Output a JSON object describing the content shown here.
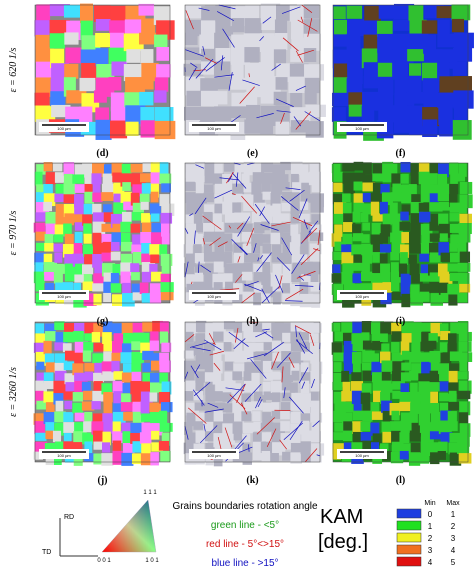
{
  "rows": [
    {
      "label": "ε = 620 1/s",
      "panels": [
        {
          "label": "(d)",
          "scale": "100 µm"
        },
        {
          "label": "(e)",
          "scale": "100 µm"
        },
        {
          "label": "(f)",
          "scale": "100 µm"
        }
      ]
    },
    {
      "label": "ε = 970 1/s",
      "panels": [
        {
          "label": "(g)",
          "scale": "100 µm"
        },
        {
          "label": "(h)",
          "scale": "100 µm"
        },
        {
          "label": "(i)",
          "scale": "100 µm"
        }
      ]
    },
    {
      "label": "ε = 3260 1/s",
      "panels": [
        {
          "label": "(j)",
          "scale": "100 µm"
        },
        {
          "label": "(k)",
          "scale": "100 µm"
        },
        {
          "label": "(l)",
          "scale": "100 µm"
        }
      ]
    }
  ],
  "legend": {
    "axis_rd": "RD",
    "axis_td": "TD",
    "ipf_111": "1 1 1",
    "ipf_001": "0 0 1",
    "ipf_101": "1 0 1",
    "boundaries_title": "Grains boundaries rotation angle",
    "boundaries": [
      {
        "text": "green line - <5°",
        "color": "#1a9a1a"
      },
      {
        "text": "red line - 5°<>15°",
        "color": "#d01010"
      },
      {
        "text": "blue line - >15°",
        "color": "#1010c0"
      }
    ],
    "kam_title": "KAM",
    "kam_unit": "[deg.]",
    "kam_header": [
      "Min",
      "Max"
    ],
    "kam_rows": [
      {
        "color": "#1f3fe0",
        "min": 0,
        "max": 1
      },
      {
        "color": "#20e020",
        "min": 1,
        "max": 2
      },
      {
        "color": "#f0f020",
        "min": 2,
        "max": 3
      },
      {
        "color": "#f07020",
        "min": 3,
        "max": 4
      },
      {
        "color": "#e01010",
        "min": 4,
        "max": 5
      }
    ]
  }
}
